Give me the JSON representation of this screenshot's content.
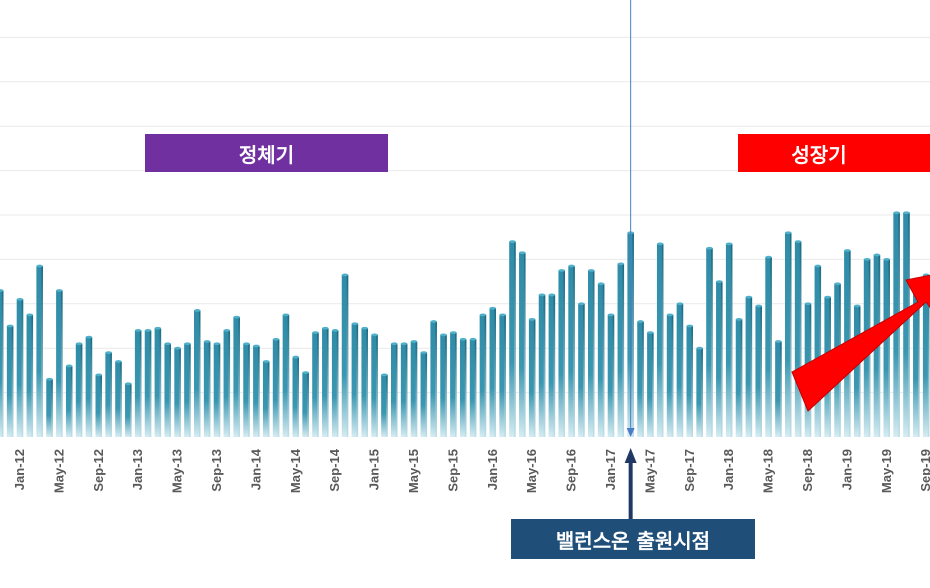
{
  "colors": {
    "bar": "#2f8ca8",
    "stagnation_box": "#7030a0",
    "growth_box": "#ff0000",
    "event_box": "#1f4e79",
    "event_arrow": "#1f3864",
    "event_line": "#4a7cc7",
    "tick_text": "#595959",
    "grid": "#e9e9e9"
  },
  "title_fragment": "",
  "annotations": {
    "stagnation_label": "정체기",
    "growth_label": "성장기",
    "event_label": "밸런스온 출원시점",
    "event_month_index": 64
  },
  "chart_data": {
    "type": "bar",
    "title": "",
    "xlabel": "",
    "ylabel": "",
    "ylim": [
      0,
      180
    ],
    "grid": true,
    "legend": "none",
    "x_tick_labels": [
      "Jan-12",
      "May-12",
      "Sep-12",
      "Jan-13",
      "May-13",
      "Sep-13",
      "Jan-14",
      "May-14",
      "Sep-14",
      "Jan-15",
      "May-15",
      "Sep-15",
      "Jan-16",
      "May-16",
      "Sep-16",
      "Jan-17",
      "May-17",
      "Sep-17",
      "Jan-18",
      "May-18",
      "Sep-18",
      "Jan-19",
      "May-19",
      "Sep-19"
    ],
    "x_tick_every": 4,
    "first_tick_index": 2,
    "values": [
      66,
      50,
      62,
      55,
      77,
      26,
      66,
      32,
      42,
      45,
      28,
      38,
      34,
      24,
      48,
      48,
      49,
      42,
      40,
      42,
      57,
      43,
      42,
      48,
      54,
      42,
      41,
      34,
      44,
      55,
      36,
      29,
      47,
      49,
      48,
      73,
      51,
      49,
      46,
      28,
      42,
      42,
      43,
      38,
      52,
      46,
      47,
      44,
      44,
      55,
      58,
      55,
      88,
      83,
      53,
      64,
      64,
      75,
      77,
      60,
      75,
      69,
      55,
      78,
      92,
      52,
      47,
      87,
      55,
      60,
      50,
      40,
      85,
      70,
      87,
      53,
      63,
      59,
      81,
      43,
      92,
      88,
      60,
      77,
      63,
      69,
      84,
      59,
      80,
      82,
      80,
      101,
      101,
      69,
      73
    ]
  }
}
